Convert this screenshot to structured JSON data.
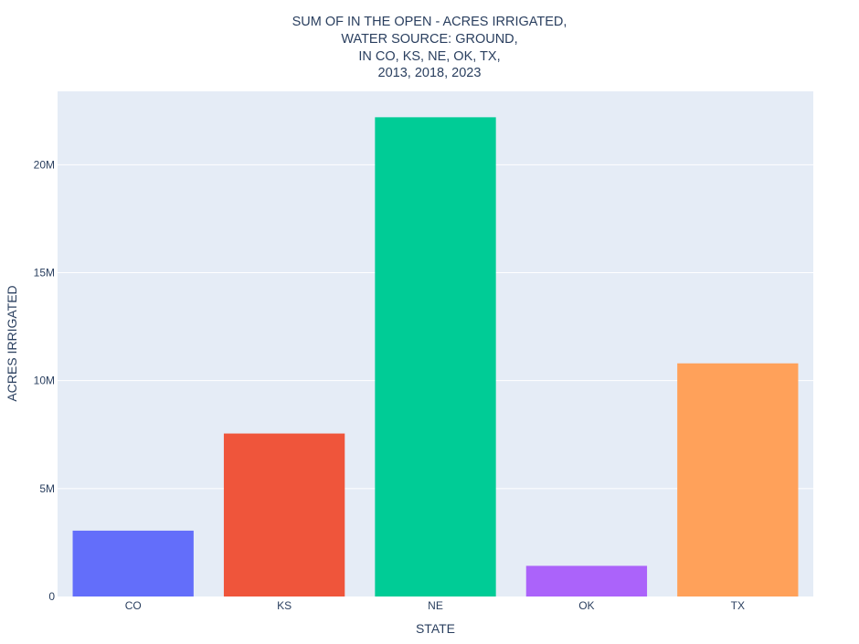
{
  "chart_data": {
    "type": "bar",
    "title_lines": [
      "SUM OF IN THE OPEN - ACRES IRRIGATED,",
      "WATER SOURCE: GROUND,",
      "IN CO, KS, NE, OK, TX,",
      "2013, 2018, 2023"
    ],
    "xlabel": "STATE",
    "ylabel": "ACRES IRRIGATED",
    "categories": [
      "CO",
      "KS",
      "NE",
      "OK",
      "TX"
    ],
    "values": [
      3050000,
      7550000,
      22200000,
      1420000,
      10800000
    ],
    "colors": [
      "#636efa",
      "#ef553b",
      "#00cc96",
      "#ab63fa",
      "#ffa15a"
    ],
    "ylim": [
      0,
      23400000
    ],
    "yticks": [
      0,
      5000000,
      10000000,
      15000000,
      20000000
    ],
    "ytick_labels": [
      "0",
      "5M",
      "10M",
      "15M",
      "20M"
    ],
    "grid": true,
    "plot_bgcolor": "#e5ecf6"
  }
}
